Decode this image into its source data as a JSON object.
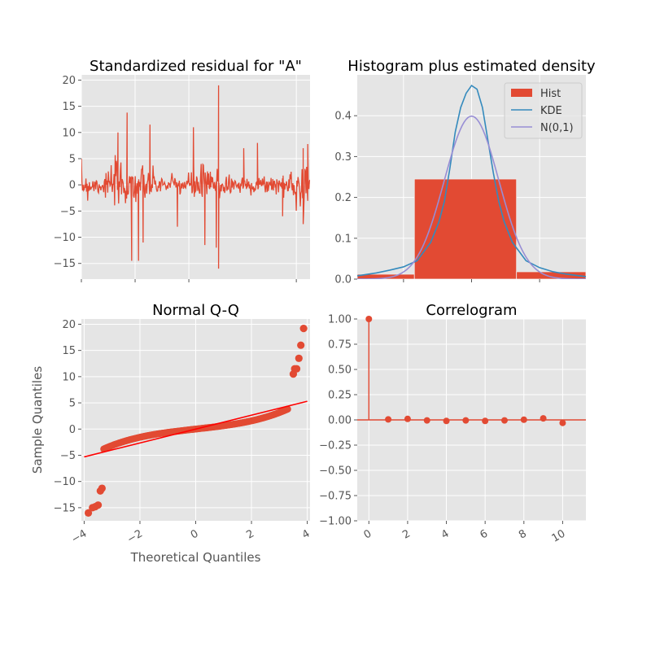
{
  "chart_data": [
    {
      "id": "resid",
      "type": "line",
      "title": "Standardized residual for \"A\"",
      "xlabel": "",
      "ylabel": "",
      "ylim": [
        -18,
        21
      ],
      "yticks": [
        -15,
        -10,
        -5,
        0,
        5,
        10,
        15,
        20
      ],
      "ytick_labels": [
        "−15",
        "−10",
        "−5",
        "0",
        "5",
        "10",
        "15",
        "20"
      ],
      "x_tick_labels_shown": false,
      "grid": true,
      "series": [
        {
          "name": "",
          "color": "#E24A33",
          "n_points": 400,
          "spikes": [
            {
              "x": 0.16,
              "y": 10
            },
            {
              "x": 0.2,
              "y": 13.8
            },
            {
              "x": 0.22,
              "y": -14.5
            },
            {
              "x": 0.25,
              "y": -14.5
            },
            {
              "x": 0.27,
              "y": -11
            },
            {
              "x": 0.3,
              "y": 11.5
            },
            {
              "x": 0.42,
              "y": -8
            },
            {
              "x": 0.49,
              "y": 11
            },
            {
              "x": 0.54,
              "y": -11.5
            },
            {
              "x": 0.59,
              "y": -12
            },
            {
              "x": 0.6,
              "y": 19
            },
            {
              "x": 0.6,
              "y": -16
            },
            {
              "x": 0.71,
              "y": 7
            },
            {
              "x": 0.77,
              "y": 8
            },
            {
              "x": 0.88,
              "y": -6
            },
            {
              "x": 0.97,
              "y": 7
            },
            {
              "x": 0.99,
              "y": 7.8
            },
            {
              "x": 0.97,
              "y": -7.5
            }
          ]
        }
      ]
    },
    {
      "id": "hist",
      "type": "bar",
      "title": "Histogram plus estimated density",
      "xlim": [
        -4.2,
        4.2
      ],
      "ylim": [
        0,
        0.5
      ],
      "yticks": [
        0.0,
        0.1,
        0.2,
        0.3,
        0.4
      ],
      "ytick_labels": [
        "0.0",
        "0.1",
        "0.2",
        "0.3",
        "0.4"
      ],
      "x_tick_labels_shown": false,
      "grid": true,
      "legend": {
        "placement": "top-right",
        "entries": [
          "Hist",
          "KDE",
          "N(0,1)"
        ]
      },
      "bars": [
        {
          "x0": -4.2,
          "x1": -2.1,
          "height": 0.012
        },
        {
          "x0": -2.1,
          "x1": 1.65,
          "height": 0.245
        },
        {
          "x0": 1.65,
          "x1": 4.2,
          "height": 0.018
        }
      ],
      "series": [
        {
          "name": "Hist",
          "color": "#E24A33"
        },
        {
          "name": "KDE",
          "color": "#348ABD",
          "x": [
            -4.2,
            -3.5,
            -3,
            -2.5,
            -2,
            -1.5,
            -1.2,
            -1,
            -0.8,
            -0.6,
            -0.4,
            -0.2,
            0,
            0.2,
            0.4,
            0.6,
            0.8,
            1,
            1.2,
            1.5,
            2,
            2.5,
            3,
            3.5,
            4.2
          ],
          "y": [
            0.008,
            0.015,
            0.022,
            0.03,
            0.045,
            0.09,
            0.14,
            0.19,
            0.27,
            0.36,
            0.42,
            0.455,
            0.474,
            0.465,
            0.42,
            0.34,
            0.26,
            0.19,
            0.14,
            0.09,
            0.045,
            0.028,
            0.018,
            0.012,
            0.006
          ]
        },
        {
          "name": "N(0,1)",
          "color": "#988ED5"
        }
      ]
    },
    {
      "id": "qq",
      "type": "scatter",
      "title": "Normal Q-Q",
      "xlabel": "Theoretical Quantiles",
      "ylabel": "Sample Quantiles",
      "xlim": [
        -4.1,
        4.1
      ],
      "ylim": [
        -17.5,
        21
      ],
      "xticks": [
        -4,
        -2,
        0,
        2,
        4
      ],
      "xtick_labels": [
        "−4",
        "−2",
        "0",
        "2",
        "4"
      ],
      "yticks": [
        -15,
        -10,
        -5,
        0,
        5,
        10,
        15,
        20
      ],
      "ytick_labels": [
        "−15",
        "−10",
        "−5",
        "0",
        "5",
        "10",
        "15",
        "20"
      ],
      "grid": true,
      "reference_line": {
        "color": "#FF0000",
        "x": [
          -4,
          4
        ],
        "y": [
          -5.3,
          5.3
        ]
      },
      "outliers": [
        {
          "x": -3.85,
          "y": -16
        },
        {
          "x": -3.7,
          "y": -15
        },
        {
          "x": -3.6,
          "y": -14.8
        },
        {
          "x": -3.5,
          "y": -14.5
        },
        {
          "x": -3.42,
          "y": -11.8
        },
        {
          "x": -3.36,
          "y": -11.3
        },
        {
          "x": 3.5,
          "y": 10.5
        },
        {
          "x": 3.55,
          "y": 11.5
        },
        {
          "x": 3.62,
          "y": 11.5
        },
        {
          "x": 3.7,
          "y": 13.5
        },
        {
          "x": 3.77,
          "y": 16
        },
        {
          "x": 3.87,
          "y": 19.2
        }
      ],
      "series": [
        {
          "name": "",
          "color": "#E24A33"
        }
      ]
    },
    {
      "id": "acf",
      "type": "scatter",
      "title": "Correlogram",
      "xlim": [
        -0.6,
        11.2
      ],
      "ylim": [
        -1.0,
        1.0
      ],
      "xticks": [
        0,
        2,
        4,
        6,
        8,
        10
      ],
      "xtick_labels": [
        "0",
        "2",
        "4",
        "6",
        "8",
        "10"
      ],
      "yticks": [
        -1.0,
        -0.75,
        -0.5,
        -0.25,
        0.0,
        0.25,
        0.5,
        0.75,
        1.0
      ],
      "ytick_labels": [
        "−1.00",
        "−0.75",
        "−0.50",
        "−0.25",
        "0.00",
        "0.25",
        "0.50",
        "0.75",
        "1.00"
      ],
      "grid": true,
      "lags": [
        0,
        1,
        2,
        3,
        4,
        5,
        6,
        7,
        8,
        9,
        10
      ],
      "values": [
        1.0,
        0.005,
        0.01,
        -0.005,
        -0.01,
        -0.005,
        -0.01,
        -0.005,
        0.002,
        0.015,
        -0.03
      ],
      "series": [
        {
          "name": "",
          "color": "#E24A33"
        }
      ]
    }
  ]
}
